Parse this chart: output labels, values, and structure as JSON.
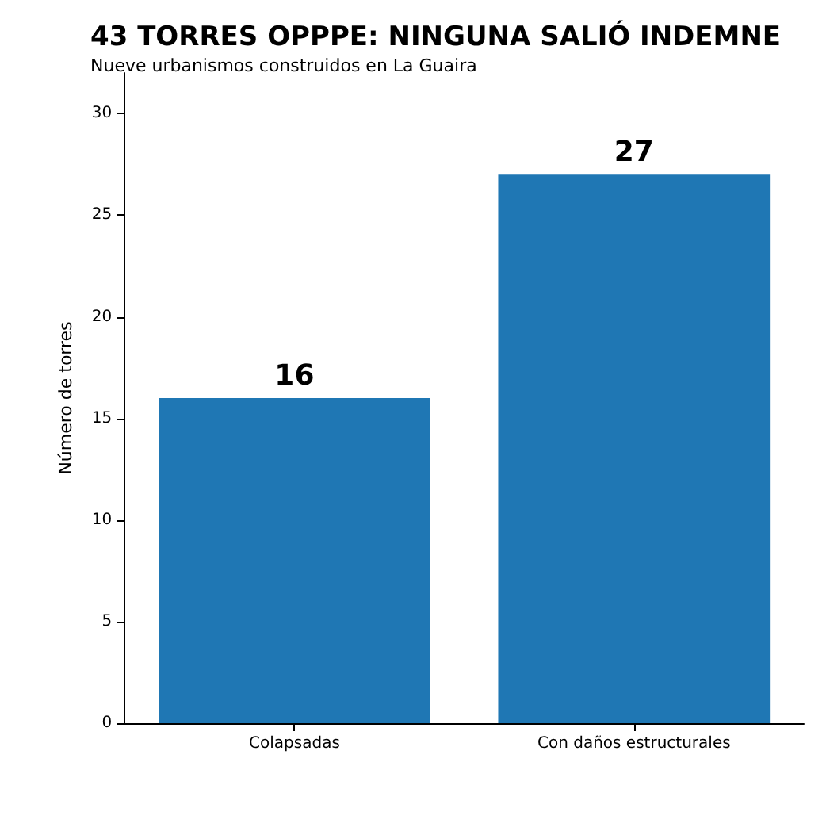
{
  "chart_data": {
    "type": "bar",
    "title": "43 TORRES OPPPE: NINGUNA SALIÓ INDEMNE",
    "subtitle": "Nueve urbanismos construidos en La Guaira",
    "ylabel": "Número de torres",
    "categories": [
      "Colapsadas",
      "Con daños estructurales"
    ],
    "values": [
      16,
      27
    ],
    "color": "#1f77b4",
    "ylim": [
      0,
      32
    ],
    "yticks": [
      0,
      5,
      10,
      15,
      20,
      25,
      30
    ],
    "data_labels": true,
    "grid": false
  }
}
